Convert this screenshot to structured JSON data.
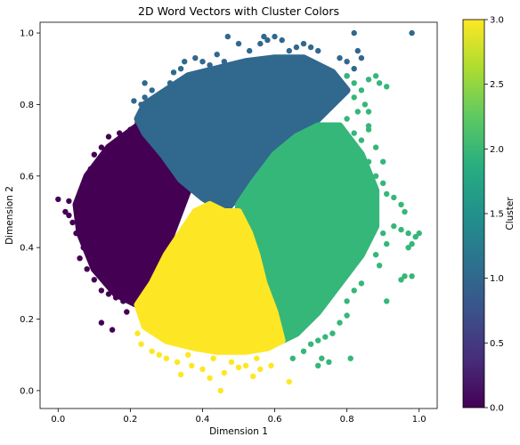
{
  "chart_data": {
    "type": "scatter",
    "title": "2D Word Vectors with Cluster Colors",
    "xlabel": "Dimension 1",
    "ylabel": "Dimension 2",
    "xlim": [
      -0.05,
      1.05
    ],
    "ylim": [
      -0.05,
      1.03
    ],
    "xticks": [
      0.0,
      0.2,
      0.4,
      0.6,
      0.8,
      1.0
    ],
    "yticks": [
      0.0,
      0.2,
      0.4,
      0.6,
      0.8,
      1.0
    ],
    "xtick_labels": [
      "0.0",
      "0.2",
      "0.4",
      "0.6",
      "0.8",
      "1.0"
    ],
    "ytick_labels": [
      "0.0",
      "0.2",
      "0.4",
      "0.6",
      "0.8",
      "1.0"
    ],
    "grid": false,
    "colorbar": {
      "label": "Cluster",
      "range": [
        0.0,
        3.0
      ],
      "ticks": [
        0.0,
        0.5,
        1.0,
        1.5,
        2.0,
        2.5,
        3.0
      ],
      "tick_labels": [
        "0.0",
        "0.5",
        "1.0",
        "1.5",
        "2.0",
        "2.5",
        "3.0"
      ],
      "colormap": "viridis"
    },
    "cluster_colors": [
      "#440154",
      "#31688e",
      "#35b779",
      "#fde725"
    ],
    "clusters": [
      {
        "cluster": 0,
        "hull": [
          [
            0.22,
            0.74
          ],
          [
            0.3,
            0.66
          ],
          [
            0.36,
            0.56
          ],
          [
            0.3,
            0.4
          ],
          [
            0.26,
            0.3
          ],
          [
            0.22,
            0.24
          ],
          [
            0.16,
            0.27
          ],
          [
            0.1,
            0.34
          ],
          [
            0.06,
            0.44
          ],
          [
            0.05,
            0.52
          ],
          [
            0.08,
            0.6
          ],
          [
            0.14,
            0.68
          ]
        ],
        "points": [
          [
            0.0,
            0.535
          ],
          [
            0.03,
            0.53
          ],
          [
            0.02,
            0.5
          ],
          [
            0.03,
            0.49
          ],
          [
            0.04,
            0.47
          ],
          [
            0.1,
            0.31
          ],
          [
            0.11,
            0.33
          ],
          [
            0.12,
            0.28
          ],
          [
            0.12,
            0.19
          ],
          [
            0.15,
            0.17
          ],
          [
            0.14,
            0.27
          ],
          [
            0.16,
            0.26
          ],
          [
            0.18,
            0.25
          ],
          [
            0.06,
            0.37
          ],
          [
            0.07,
            0.4
          ],
          [
            0.08,
            0.34
          ],
          [
            0.1,
            0.66
          ],
          [
            0.12,
            0.68
          ],
          [
            0.14,
            0.71
          ],
          [
            0.17,
            0.72
          ],
          [
            0.2,
            0.73
          ],
          [
            0.22,
            0.75
          ],
          [
            0.09,
            0.62
          ],
          [
            0.08,
            0.58
          ],
          [
            0.09,
            0.45
          ],
          [
            0.05,
            0.44
          ],
          [
            0.19,
            0.22
          ],
          [
            0.23,
            0.26
          ]
        ]
      },
      {
        "cluster": 1,
        "hull": [
          [
            0.24,
            0.8
          ],
          [
            0.3,
            0.84
          ],
          [
            0.36,
            0.88
          ],
          [
            0.44,
            0.9
          ],
          [
            0.52,
            0.92
          ],
          [
            0.6,
            0.93
          ],
          [
            0.68,
            0.93
          ],
          [
            0.76,
            0.89
          ],
          [
            0.8,
            0.84
          ],
          [
            0.74,
            0.78
          ],
          [
            0.68,
            0.72
          ],
          [
            0.6,
            0.66
          ],
          [
            0.53,
            0.58
          ],
          [
            0.46,
            0.5
          ],
          [
            0.4,
            0.54
          ],
          [
            0.34,
            0.59
          ],
          [
            0.29,
            0.66
          ],
          [
            0.24,
            0.72
          ],
          [
            0.22,
            0.76
          ]
        ],
        "points": [
          [
            0.98,
            1.0
          ],
          [
            0.82,
            1.0
          ],
          [
            0.57,
            0.99
          ],
          [
            0.47,
            0.99
          ],
          [
            0.58,
            0.98
          ],
          [
            0.6,
            0.99
          ],
          [
            0.62,
            0.98
          ],
          [
            0.5,
            0.97
          ],
          [
            0.56,
            0.97
          ],
          [
            0.68,
            0.97
          ],
          [
            0.72,
            0.95
          ],
          [
            0.66,
            0.96
          ],
          [
            0.7,
            0.96
          ],
          [
            0.38,
            0.93
          ],
          [
            0.4,
            0.92
          ],
          [
            0.42,
            0.91
          ],
          [
            0.35,
            0.92
          ],
          [
            0.46,
            0.92
          ],
          [
            0.24,
            0.86
          ],
          [
            0.26,
            0.84
          ],
          [
            0.31,
            0.86
          ],
          [
            0.32,
            0.89
          ],
          [
            0.34,
            0.9
          ],
          [
            0.78,
            0.93
          ],
          [
            0.8,
            0.92
          ],
          [
            0.83,
            0.95
          ],
          [
            0.84,
            0.93
          ],
          [
            0.82,
            0.9
          ],
          [
            0.8,
            0.88
          ],
          [
            0.77,
            0.86
          ],
          [
            0.23,
            0.8
          ],
          [
            0.24,
            0.82
          ],
          [
            0.29,
            0.82
          ],
          [
            0.76,
            0.84
          ],
          [
            0.53,
            0.95
          ],
          [
            0.64,
            0.95
          ],
          [
            0.44,
            0.94
          ],
          [
            0.21,
            0.81
          ]
        ]
      },
      {
        "cluster": 2,
        "hull": [
          [
            0.54,
            0.58
          ],
          [
            0.6,
            0.66
          ],
          [
            0.66,
            0.71
          ],
          [
            0.72,
            0.74
          ],
          [
            0.78,
            0.74
          ],
          [
            0.84,
            0.66
          ],
          [
            0.88,
            0.56
          ],
          [
            0.88,
            0.46
          ],
          [
            0.84,
            0.38
          ],
          [
            0.78,
            0.3
          ],
          [
            0.72,
            0.22
          ],
          [
            0.66,
            0.16
          ],
          [
            0.62,
            0.14
          ],
          [
            0.58,
            0.2
          ],
          [
            0.56,
            0.28
          ],
          [
            0.52,
            0.36
          ],
          [
            0.5,
            0.46
          ],
          [
            0.5,
            0.52
          ]
        ],
        "points": [
          [
            0.8,
            0.88
          ],
          [
            0.82,
            0.86
          ],
          [
            0.84,
            0.84
          ],
          [
            0.86,
            0.87
          ],
          [
            0.88,
            0.88
          ],
          [
            0.89,
            0.86
          ],
          [
            0.91,
            0.85
          ],
          [
            0.82,
            0.82
          ],
          [
            0.85,
            0.8
          ],
          [
            0.86,
            0.78
          ],
          [
            0.83,
            0.78
          ],
          [
            0.8,
            0.76
          ],
          [
            0.82,
            0.72
          ],
          [
            0.86,
            0.74
          ],
          [
            0.84,
            0.7
          ],
          [
            0.86,
            0.64
          ],
          [
            0.88,
            0.6
          ],
          [
            0.9,
            0.58
          ],
          [
            0.91,
            0.55
          ],
          [
            0.93,
            0.54
          ],
          [
            0.95,
            0.52
          ],
          [
            0.96,
            0.5
          ],
          [
            0.93,
            0.46
          ],
          [
            0.95,
            0.45
          ],
          [
            0.97,
            0.44
          ],
          [
            0.99,
            0.43
          ],
          [
            1.0,
            0.44
          ],
          [
            0.98,
            0.41
          ],
          [
            0.97,
            0.4
          ],
          [
            0.9,
            0.44
          ],
          [
            0.91,
            0.41
          ],
          [
            0.88,
            0.38
          ],
          [
            0.89,
            0.35
          ],
          [
            0.96,
            0.32
          ],
          [
            0.98,
            0.32
          ],
          [
            0.95,
            0.31
          ],
          [
            0.91,
            0.25
          ],
          [
            0.84,
            0.3
          ],
          [
            0.82,
            0.28
          ],
          [
            0.8,
            0.25
          ],
          [
            0.8,
            0.21
          ],
          [
            0.78,
            0.19
          ],
          [
            0.76,
            0.16
          ],
          [
            0.74,
            0.15
          ],
          [
            0.72,
            0.14
          ],
          [
            0.7,
            0.13
          ],
          [
            0.68,
            0.11
          ],
          [
            0.65,
            0.09
          ],
          [
            0.73,
            0.09
          ],
          [
            0.75,
            0.08
          ],
          [
            0.81,
            0.09
          ],
          [
            0.72,
            0.07
          ],
          [
            0.86,
            0.73
          ],
          [
            0.88,
            0.68
          ],
          [
            0.9,
            0.64
          ]
        ]
      },
      {
        "cluster": 3,
        "hull": [
          [
            0.42,
            0.52
          ],
          [
            0.46,
            0.5
          ],
          [
            0.5,
            0.5
          ],
          [
            0.53,
            0.44
          ],
          [
            0.55,
            0.38
          ],
          [
            0.57,
            0.3
          ],
          [
            0.6,
            0.22
          ],
          [
            0.62,
            0.14
          ],
          [
            0.58,
            0.12
          ],
          [
            0.52,
            0.11
          ],
          [
            0.44,
            0.11
          ],
          [
            0.38,
            0.12
          ],
          [
            0.3,
            0.14
          ],
          [
            0.24,
            0.18
          ],
          [
            0.22,
            0.24
          ],
          [
            0.26,
            0.3
          ],
          [
            0.3,
            0.38
          ],
          [
            0.34,
            0.44
          ],
          [
            0.38,
            0.5
          ]
        ],
        "points": [
          [
            0.45,
            0.0
          ],
          [
            0.42,
            0.035
          ],
          [
            0.34,
            0.045
          ],
          [
            0.46,
            0.05
          ],
          [
            0.52,
            0.07
          ],
          [
            0.5,
            0.065
          ],
          [
            0.56,
            0.06
          ],
          [
            0.59,
            0.07
          ],
          [
            0.54,
            0.04
          ],
          [
            0.64,
            0.025
          ],
          [
            0.4,
            0.06
          ],
          [
            0.37,
            0.07
          ],
          [
            0.33,
            0.08
          ],
          [
            0.3,
            0.09
          ],
          [
            0.28,
            0.1
          ],
          [
            0.26,
            0.11
          ],
          [
            0.23,
            0.13
          ],
          [
            0.22,
            0.16
          ],
          [
            0.55,
            0.09
          ],
          [
            0.48,
            0.08
          ],
          [
            0.43,
            0.09
          ],
          [
            0.36,
            0.1
          ]
        ]
      }
    ]
  }
}
